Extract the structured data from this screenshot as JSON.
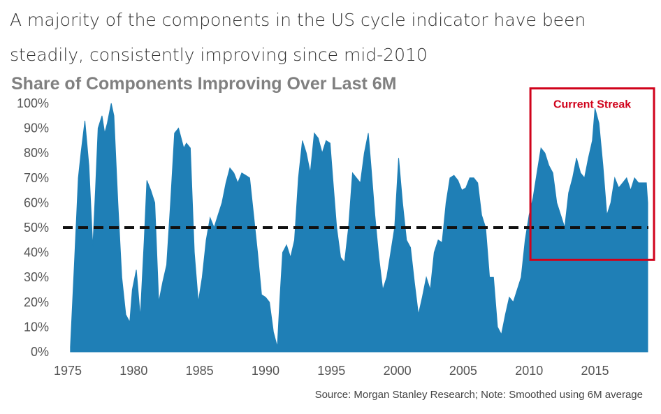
{
  "headline": "A majority of the components in the US cycle indicator have been steadily, consistently improving since mid-2010",
  "source": "Source: Morgan Stanley Research; Note: Smoothed using 6M average",
  "colors": {
    "area": "#1f7fb6",
    "reference": "#111111",
    "highlight": "#d0021b"
  },
  "chart_data": {
    "type": "area",
    "title": "Share of Components Improving Over Last 6M",
    "xlabel": "",
    "ylabel": "",
    "xlim": [
      1975,
      2019
    ],
    "ylim": [
      0,
      100
    ],
    "x_ticks": [
      1975,
      1980,
      1985,
      1990,
      1995,
      2000,
      2005,
      2010,
      2015
    ],
    "y_ticks": [
      0,
      10,
      20,
      30,
      40,
      50,
      60,
      70,
      80,
      90,
      100
    ],
    "y_tick_labels": [
      "0%",
      "10%",
      "20%",
      "30%",
      "40%",
      "50%",
      "60%",
      "70%",
      "80%",
      "90%",
      "100%"
    ],
    "reference_line": {
      "y": 50,
      "style": "dashed"
    },
    "highlight": {
      "label": "Current Streak",
      "x_start": 2010.1,
      "x_end": 2019.5,
      "y_start": 37,
      "y_end": 106
    },
    "grid": false,
    "series": [
      {
        "x": [
          1975.2,
          1975.5,
          1975.8,
          1976.0,
          1976.3,
          1976.6,
          1976.9,
          1977.1,
          1977.3,
          1977.6,
          1977.8,
          1978.0,
          1978.3,
          1978.5,
          1978.8,
          1979.1,
          1979.4,
          1979.7,
          1979.9,
          1980.2,
          1980.5,
          1980.8,
          1981.0,
          1981.3,
          1981.6,
          1981.9,
          1982.2,
          1982.5,
          1982.8,
          1983.1,
          1983.4,
          1983.8,
          1984.0,
          1984.3,
          1984.6,
          1984.9,
          1985.2,
          1985.5,
          1985.8,
          1986.1,
          1986.4,
          1986.7,
          1987.0,
          1987.3,
          1987.6,
          1987.9,
          1988.2,
          1988.5,
          1988.8,
          1989.1,
          1989.4,
          1989.7,
          1990.0,
          1990.3,
          1990.6,
          1990.9,
          1991.1,
          1991.3,
          1991.6,
          1991.9,
          1992.2,
          1992.5,
          1992.8,
          1993.1,
          1993.4,
          1993.7,
          1994.0,
          1994.3,
          1994.6,
          1994.9,
          1995.1,
          1995.4,
          1995.7,
          1996.0,
          1996.3,
          1996.6,
          1996.9,
          1997.2,
          1997.5,
          1997.8,
          1998.0,
          1998.3,
          1998.6,
          1998.9,
          1999.2,
          1999.5,
          1999.8,
          2000.1,
          2000.4,
          2000.7,
          2001.0,
          2001.3,
          2001.6,
          2001.9,
          2002.2,
          2002.5,
          2002.8,
          2003.1,
          2003.4,
          2003.7,
          2004.0,
          2004.3,
          2004.6,
          2004.9,
          2005.2,
          2005.5,
          2005.8,
          2006.1,
          2006.4,
          2006.7,
          2007.0,
          2007.3,
          2007.6,
          2007.9,
          2008.2,
          2008.5,
          2008.8,
          2009.1,
          2009.4,
          2009.7,
          2010.0,
          2010.3,
          2010.6,
          2010.9,
          2011.2,
          2011.5,
          2011.8,
          2012.1,
          2012.4,
          2012.7,
          2013.0,
          2013.3,
          2013.6,
          2013.9,
          2014.2,
          2014.5,
          2014.8,
          2015.0,
          2015.3,
          2015.6,
          2015.9,
          2016.2,
          2016.5,
          2016.8,
          2017.1,
          2017.4,
          2017.7,
          2018.0,
          2018.3,
          2018.6,
          2018.9,
          2019.0
        ],
        "values": [
          2,
          35,
          70,
          80,
          93,
          75,
          42,
          65,
          90,
          95,
          88,
          92,
          100,
          95,
          60,
          30,
          15,
          12,
          25,
          33,
          14,
          45,
          69,
          65,
          60,
          20,
          28,
          35,
          60,
          88,
          90,
          82,
          84,
          82,
          40,
          20,
          30,
          45,
          54,
          50,
          55,
          60,
          68,
          74,
          72,
          68,
          72,
          71,
          70,
          55,
          40,
          23,
          22,
          20,
          8,
          2,
          22,
          40,
          43,
          38,
          45,
          70,
          85,
          80,
          72,
          88,
          86,
          80,
          85,
          84,
          70,
          50,
          38,
          36,
          50,
          72,
          70,
          68,
          80,
          88,
          75,
          55,
          38,
          25,
          30,
          40,
          50,
          78,
          60,
          45,
          42,
          28,
          15,
          22,
          30,
          25,
          40,
          45,
          44,
          60,
          70,
          71,
          69,
          65,
          66,
          70,
          70,
          68,
          55,
          50,
          30,
          30,
          10,
          7,
          15,
          22,
          20,
          25,
          30,
          45,
          55,
          62,
          72,
          82,
          80,
          75,
          72,
          60,
          55,
          50,
          64,
          70,
          78,
          72,
          70,
          78,
          85,
          98,
          92,
          75,
          55,
          60,
          70,
          66,
          68,
          70,
          65,
          70,
          68,
          68,
          68,
          60
        ]
      }
    ]
  }
}
